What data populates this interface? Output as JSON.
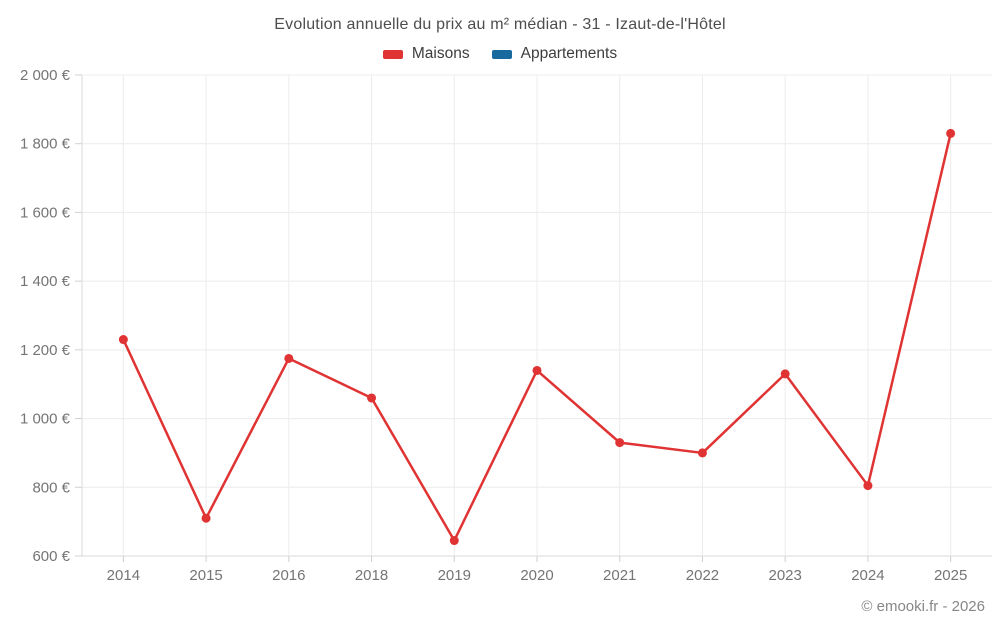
{
  "page": {
    "footer": "© emooki.fr - 2026"
  },
  "chart_data": {
    "type": "line",
    "title": "Evolution annuelle du prix au m² médian - 31 - Izaut-de-l'Hôtel",
    "categories": [
      "2014",
      "2015",
      "2016",
      "2018",
      "2019",
      "2020",
      "2021",
      "2022",
      "2023",
      "2024",
      "2025"
    ],
    "series": [
      {
        "name": "Maisons",
        "color": "#e03333",
        "values": [
          1230,
          710,
          1175,
          1060,
          645,
          1140,
          930,
          900,
          1130,
          805,
          1830
        ]
      },
      {
        "name": "Appartements",
        "color": "#17699e",
        "values": []
      }
    ],
    "xlabel": "",
    "ylabel": "",
    "ylim": [
      600,
      2000
    ],
    "ytick_step": 200,
    "ytick_suffix": " €",
    "grid": true,
    "legend_position": "top",
    "colors": {
      "grid_line": "#ececec",
      "axis_line": "#dadada",
      "tick_mark": "#d0d0d0",
      "tick_label": "#757575"
    }
  }
}
